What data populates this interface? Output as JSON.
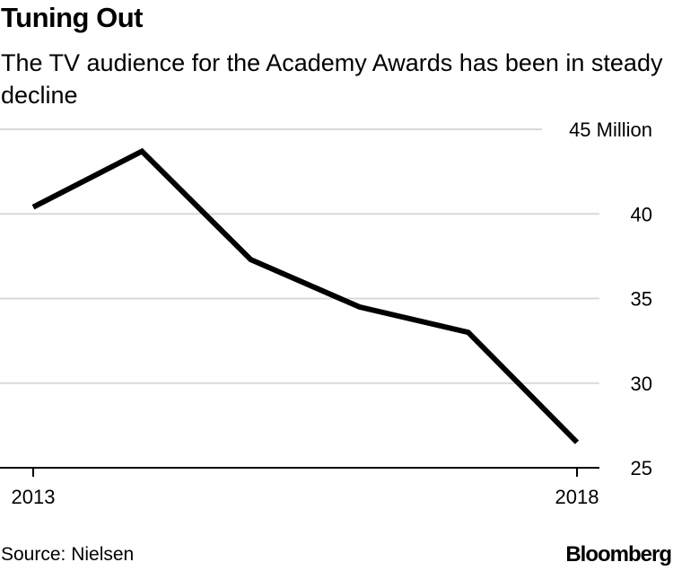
{
  "header": {
    "title": "Tuning Out",
    "subtitle": "The TV audience for the Academy Awards has been in steady decline"
  },
  "footer": {
    "source": "Source: Nielsen",
    "brand": "Bloomberg"
  },
  "chart_data": {
    "type": "line",
    "title": "Tuning Out",
    "subtitle": "The TV audience for the Academy Awards has been in steady decline",
    "xlabel": "",
    "ylabel": "",
    "x": [
      2013,
      2014,
      2015,
      2016,
      2017,
      2018
    ],
    "series": [
      {
        "name": "TV audience (millions)",
        "values": [
          40.4,
          43.7,
          37.3,
          34.5,
          33.0,
          26.5
        ]
      }
    ],
    "ylim": [
      25,
      45
    ],
    "yticks": [
      25,
      30,
      35,
      40,
      45
    ],
    "ytick_labels": [
      "25",
      "30",
      "35",
      "40",
      "45 Million"
    ],
    "xticks": [
      2013,
      2018
    ],
    "xtick_labels": [
      "2013",
      "2018"
    ],
    "grid": true,
    "colors": {
      "line": "#000000",
      "grid": "#d9d9d9",
      "axis": "#000000"
    }
  }
}
